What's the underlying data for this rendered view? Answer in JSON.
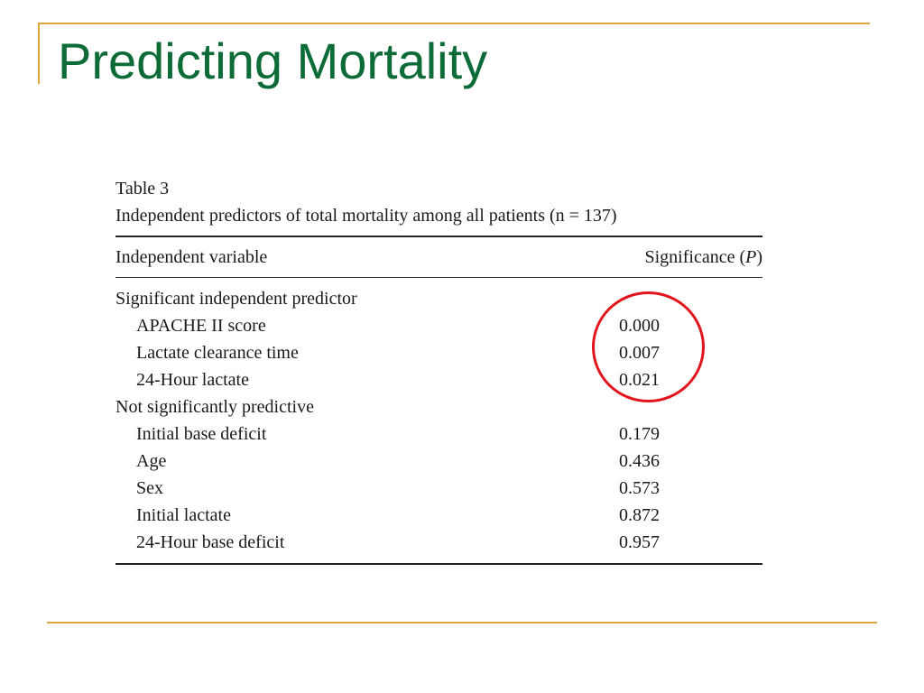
{
  "slide": {
    "title": "Predicting Mortality",
    "accent_color": "#e0a83a",
    "title_color": "#0c6b36",
    "highlight_color": "#e2141c"
  },
  "table": {
    "label": "Table 3",
    "caption": "Independent predictors of total mortality among all patients (n = 137)",
    "headers": {
      "variable": "Independent variable",
      "significance": "Significance (",
      "significance_symbol": "P",
      "significance_close": ")"
    },
    "groups": [
      {
        "label": "Significant independent predictor",
        "rows": [
          {
            "variable": "APACHE II score",
            "p": "0.000"
          },
          {
            "variable": "Lactate clearance time",
            "p": "0.007"
          },
          {
            "variable": "24-Hour lactate",
            "p": "0.021"
          }
        ]
      },
      {
        "label": "Not significantly predictive",
        "rows": [
          {
            "variable": "Initial base deficit",
            "p": "0.179"
          },
          {
            "variable": "Age",
            "p": "0.436"
          },
          {
            "variable": "Sex",
            "p": "0.573"
          },
          {
            "variable": "Initial lactate",
            "p": "0.872"
          },
          {
            "variable": "24-Hour base deficit",
            "p": "0.957"
          }
        ]
      }
    ]
  }
}
